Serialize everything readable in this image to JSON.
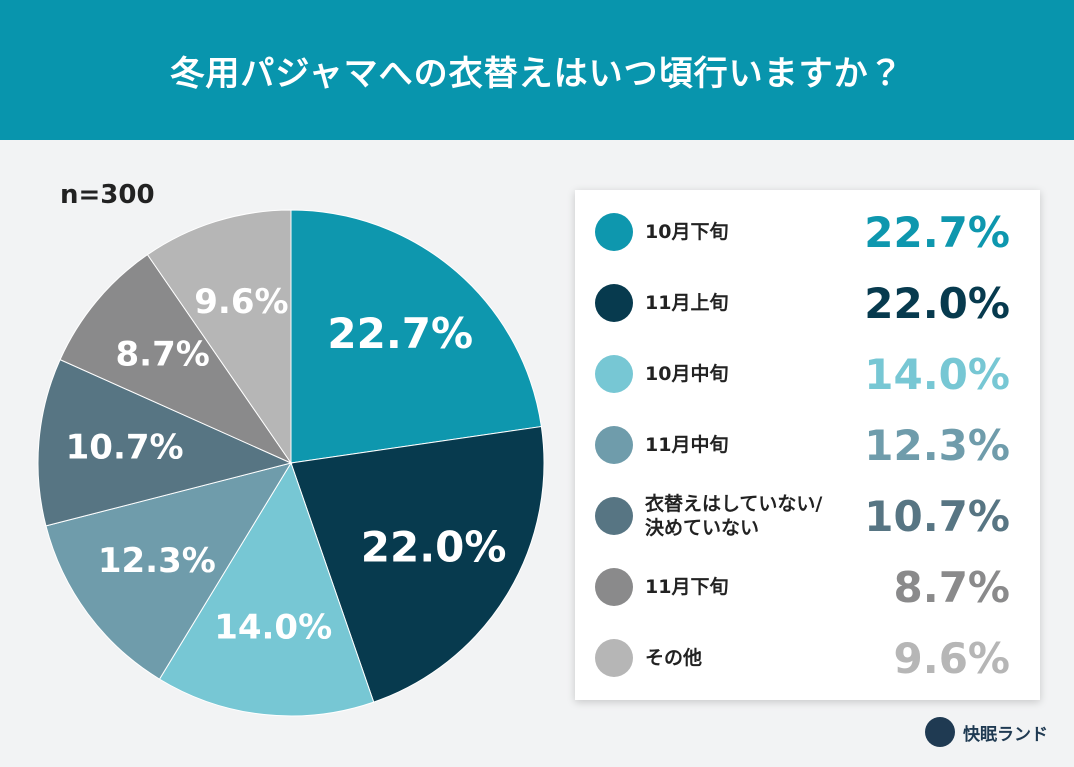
{
  "chart_data": {
    "type": "pie",
    "title": "冬用パジャマへの衣替えはいつ頃行いますか？",
    "annotation": "n=300",
    "categories": [
      "10月下旬",
      "11月上旬",
      "10月中旬",
      "11月中旬",
      "衣替えはしていない/\n決めていない",
      "11月下旬",
      "その他"
    ],
    "values": [
      22.7,
      22.0,
      14.0,
      12.3,
      10.7,
      8.7,
      9.6
    ],
    "value_labels": [
      "22.7%",
      "22.0%",
      "14.0%",
      "12.3%",
      "10.7%",
      "8.7%",
      "9.6%"
    ],
    "colors": [
      "#0e97ae",
      "#073a4e",
      "#77c7d4",
      "#6f9cab",
      "#577583",
      "#8a8a8b",
      "#b6b6b6"
    ],
    "legend": "right"
  },
  "brand": "快眠ランド"
}
